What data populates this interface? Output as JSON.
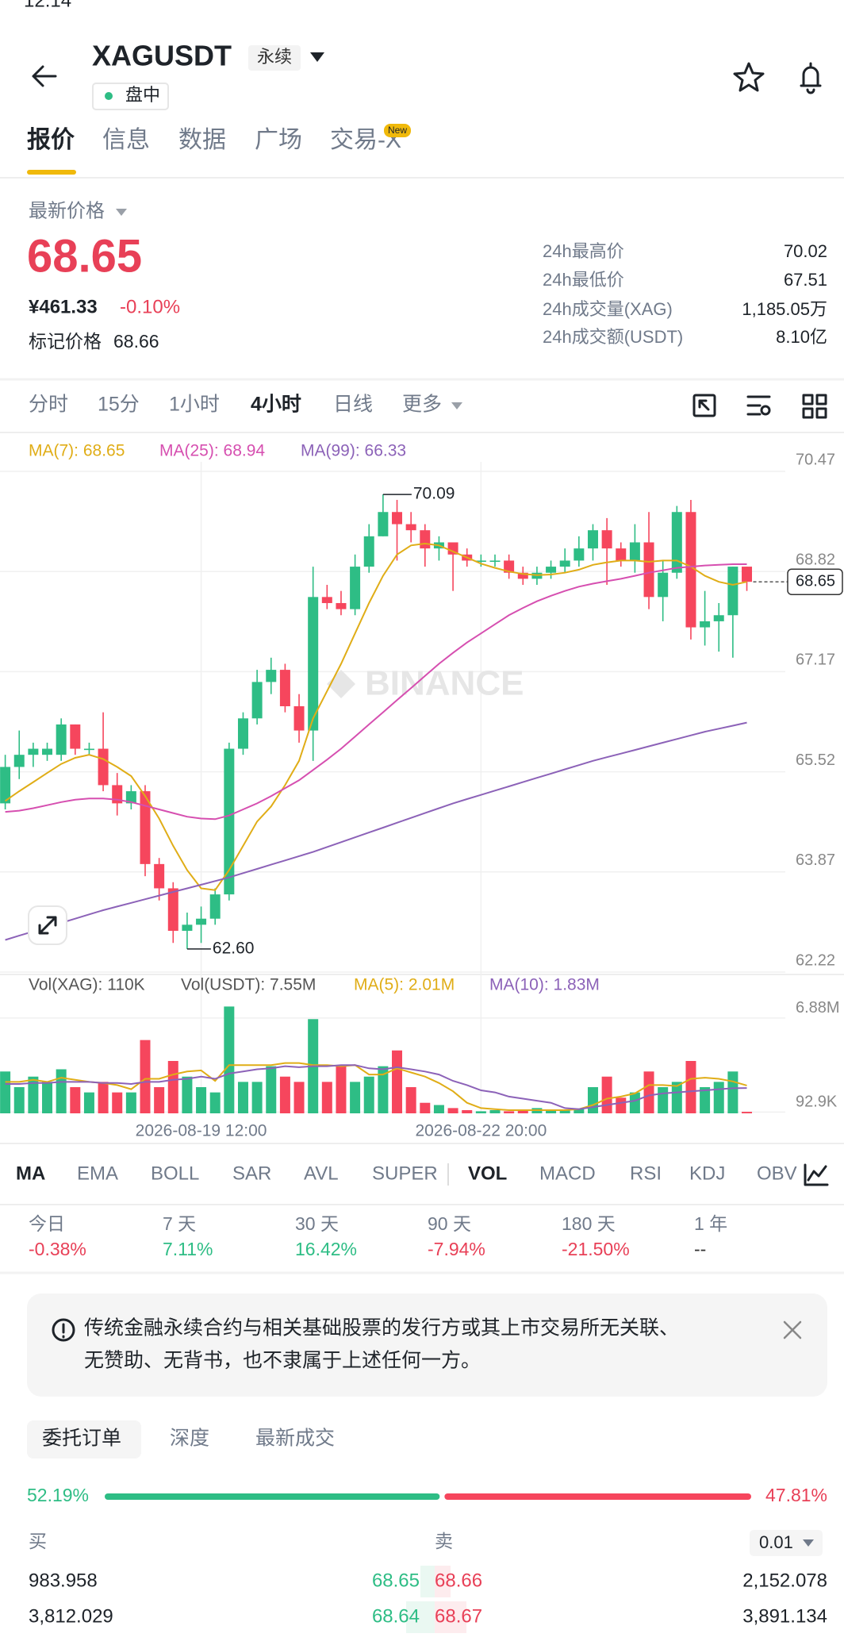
{
  "status_bar": {
    "time": "12:14"
  },
  "header": {
    "symbol": "XAGUSDT",
    "contract": "永续",
    "session": "盘中"
  },
  "tabs": {
    "items": [
      "报价",
      "信息",
      "数据",
      "广场",
      "交易-X"
    ],
    "active": 0,
    "badge": "New"
  },
  "price": {
    "label": "最新价格",
    "last": "68.65",
    "cny": "¥461.33",
    "change": "-0.10%",
    "mark_label": "标记价格",
    "mark": "68.66"
  },
  "stats": [
    {
      "label": "24h最高价",
      "value": "70.02"
    },
    {
      "label": "24h最低价",
      "value": "67.51"
    },
    {
      "label": "24h成交量(XAG)",
      "value": "1,185.05万"
    },
    {
      "label": "24h成交额(USDT)",
      "value": "8.10亿"
    }
  ],
  "intervals": {
    "items": [
      "分时",
      "15分",
      "1小时",
      "4小时",
      "日线",
      "更多"
    ],
    "active": 3
  },
  "chart_data": {
    "type": "candlestick",
    "categories": [
      null,
      null,
      null,
      null,
      null,
      null,
      null,
      null,
      null,
      null,
      null,
      null,
      null,
      null,
      "2026-08-19 12:00",
      null,
      null,
      null,
      null,
      null,
      null,
      null,
      null,
      null,
      null,
      null,
      null,
      null,
      null,
      null,
      null,
      null,
      null,
      null,
      "2026-08-22 20:00",
      null,
      null,
      null,
      null,
      null,
      null,
      null,
      null,
      null,
      null,
      null,
      null,
      null,
      null,
      null,
      null,
      null,
      null,
      null
    ],
    "open": [
      65.0,
      65.6,
      65.8,
      65.8,
      65.8,
      66.3,
      65.9,
      65.9,
      65.3,
      65.0,
      65.2,
      64.0,
      63.6,
      62.9,
      63.0,
      63.1,
      63.5,
      65.9,
      66.4,
      67.0,
      67.2,
      66.6,
      66.2,
      68.4,
      68.3,
      68.2,
      68.9,
      69.4,
      69.8,
      69.6,
      69.5,
      69.2,
      69.3,
      69.1,
      69.0,
      69.0,
      69.0,
      68.8,
      68.7,
      68.8,
      68.9,
      69.0,
      69.2,
      69.5,
      69.2,
      69.0,
      69.3,
      68.4,
      68.8,
      69.8,
      67.9,
      68.0,
      68.1,
      68.9
    ],
    "high": [
      65.8,
      66.2,
      66.0,
      66.0,
      66.4,
      66.3,
      66.0,
      66.5,
      65.5,
      65.3,
      65.3,
      64.1,
      63.7,
      63.2,
      63.3,
      63.6,
      66.0,
      66.5,
      67.2,
      67.4,
      67.3,
      66.8,
      68.9,
      68.6,
      68.5,
      69.1,
      69.6,
      70.09,
      70.0,
      69.8,
      69.6,
      69.4,
      69.3,
      69.2,
      69.1,
      69.1,
      69.1,
      68.9,
      68.9,
      69.0,
      69.2,
      69.4,
      69.6,
      69.7,
      69.3,
      69.6,
      69.8,
      69.0,
      69.9,
      70.0,
      68.5,
      68.3,
      68.9,
      68.9
    ],
    "low": [
      64.9,
      65.4,
      65.6,
      65.7,
      65.7,
      65.8,
      65.8,
      65.2,
      64.8,
      64.9,
      63.8,
      63.4,
      62.7,
      62.6,
      62.7,
      63.0,
      63.4,
      65.8,
      66.3,
      66.8,
      66.5,
      66.0,
      65.7,
      68.2,
      68.1,
      68.1,
      68.8,
      69.4,
      69.0,
      69.3,
      68.9,
      69.0,
      68.5,
      68.9,
      68.9,
      68.9,
      68.7,
      68.6,
      68.6,
      68.7,
      68.8,
      68.9,
      69.0,
      68.6,
      68.9,
      68.8,
      68.2,
      68.0,
      68.7,
      67.7,
      67.6,
      67.5,
      67.4,
      68.5
    ],
    "close": [
      65.6,
      65.8,
      65.9,
      65.9,
      66.3,
      65.9,
      65.9,
      65.3,
      65.0,
      65.2,
      64.0,
      63.6,
      62.9,
      63.0,
      63.1,
      63.5,
      65.9,
      66.4,
      67.0,
      67.2,
      66.6,
      66.2,
      68.4,
      68.3,
      68.2,
      68.9,
      69.4,
      69.8,
      69.6,
      69.5,
      69.2,
      69.3,
      69.1,
      69.0,
      69.0,
      69.0,
      68.8,
      68.7,
      68.8,
      68.9,
      69.0,
      69.2,
      69.5,
      69.2,
      69.0,
      69.3,
      68.4,
      68.8,
      69.8,
      67.9,
      68.0,
      68.1,
      68.9,
      68.65
    ],
    "up_color": "#2ebd85",
    "down_color": "#f6465d",
    "ylim": [
      62.22,
      70.47
    ],
    "yticks": [
      62.22,
      63.87,
      65.52,
      67.17,
      68.82,
      70.47
    ],
    "grid": true,
    "last_price": 68.65,
    "max_label": "70.09",
    "min_label": "62.60",
    "watermark": "BINANCE",
    "lines": [
      {
        "name": "MA(7): 68.65",
        "color": "#e0ad17",
        "values": [
          65.04,
          65.2,
          65.35,
          65.5,
          65.65,
          65.75,
          65.8,
          65.73,
          65.6,
          65.45,
          65.12,
          64.75,
          64.3,
          63.9,
          63.6,
          63.57,
          63.9,
          64.3,
          64.7,
          64.95,
          65.3,
          65.7,
          66.4,
          66.85,
          67.3,
          67.8,
          68.3,
          68.75,
          69.1,
          69.25,
          69.28,
          69.25,
          69.15,
          69.05,
          68.95,
          68.88,
          68.82,
          68.78,
          68.76,
          68.77,
          68.8,
          68.85,
          68.93,
          68.97,
          69.0,
          69.0,
          68.98,
          69.0,
          69.0,
          68.9,
          68.75,
          68.65,
          68.6,
          68.65
        ]
      },
      {
        "name": "MA(25): 68.94",
        "color": "#d64fb0",
        "values": [
          64.86,
          64.88,
          64.92,
          64.97,
          65.02,
          65.06,
          65.08,
          65.08,
          65.06,
          65.02,
          64.96,
          64.9,
          64.84,
          64.78,
          64.75,
          64.74,
          64.8,
          64.9,
          65.0,
          65.12,
          65.25,
          65.38,
          65.55,
          65.72,
          65.9,
          66.1,
          66.3,
          66.5,
          66.7,
          66.9,
          67.1,
          67.3,
          67.48,
          67.65,
          67.8,
          67.95,
          68.1,
          68.22,
          68.33,
          68.42,
          68.5,
          68.57,
          68.62,
          68.66,
          68.7,
          68.75,
          68.8,
          68.84,
          68.88,
          68.9,
          68.92,
          68.93,
          68.94,
          68.94
        ]
      },
      {
        "name": "MA(99): 66.33",
        "color": "#8c62b8",
        "values": [
          62.75,
          62.82,
          62.89,
          62.96,
          63.03,
          63.1,
          63.17,
          63.24,
          63.3,
          63.36,
          63.42,
          63.48,
          63.54,
          63.6,
          63.66,
          63.72,
          63.78,
          63.85,
          63.92,
          63.99,
          64.06,
          64.13,
          64.2,
          64.28,
          64.36,
          64.44,
          64.52,
          64.6,
          64.68,
          64.76,
          64.84,
          64.92,
          65.0,
          65.07,
          65.14,
          65.21,
          65.28,
          65.35,
          65.42,
          65.49,
          65.56,
          65.63,
          65.7,
          65.76,
          65.82,
          65.88,
          65.94,
          66.0,
          66.06,
          66.12,
          66.18,
          66.23,
          66.28,
          66.33
        ]
      }
    ],
    "volume": {
      "legend": [
        {
          "name": "Vol(XAG): 110K"
        },
        {
          "name": "Vol(USDT): 7.55M"
        }
      ],
      "ylim": [
        0,
        9680000
      ],
      "yticks": [
        {
          "value": 92900,
          "label": "92.9K"
        },
        {
          "value": 6880000,
          "label": "6.88M"
        }
      ],
      "values": [
        3020000,
        1890000,
        2650000,
        2270000,
        3180000,
        1890000,
        1510000,
        2270000,
        1510000,
        1510000,
        5290000,
        1890000,
        3780000,
        2650000,
        1890000,
        1510000,
        7710000,
        2270000,
        2270000,
        3400000,
        2650000,
        2270000,
        6800000,
        2270000,
        3400000,
        2270000,
        2650000,
        3400000,
        4540000,
        1890000,
        760000,
        600000,
        380000,
        230000,
        150000,
        230000,
        150000,
        230000,
        380000,
        230000,
        230000,
        300000,
        1890000,
        2650000,
        1130000,
        1510000,
        3020000,
        1890000,
        2270000,
        3780000,
        1890000,
        2270000,
        3020000,
        110000
      ],
      "lines": [
        {
          "name": "MA(5): 2.01M",
          "color": "#e0ad17",
          "values": [
            2270000,
            2270000,
            2420000,
            2270000,
            2570000,
            2420000,
            2270000,
            2190000,
            2040000,
            1740000,
            2490000,
            2490000,
            2800000,
            3020000,
            3100000,
            2340000,
            3480000,
            3480000,
            3480000,
            3480000,
            3630000,
            3630000,
            3480000,
            3480000,
            3400000,
            3480000,
            2800000,
            2800000,
            3250000,
            2950000,
            2650000,
            2190000,
            1590000,
            760000,
            380000,
            300000,
            230000,
            230000,
            230000,
            230000,
            230000,
            300000,
            600000,
            1060000,
            1210000,
            1440000,
            2040000,
            2040000,
            1970000,
            2490000,
            2570000,
            2490000,
            2300000,
            2010000
          ]
        },
        {
          "name": "MA(10): 1.83M",
          "color": "#8c62b8",
          "values": [
            2120000,
            2120000,
            2190000,
            2190000,
            2270000,
            2270000,
            2270000,
            2190000,
            2190000,
            2120000,
            2270000,
            2270000,
            2420000,
            2490000,
            2650000,
            2490000,
            2870000,
            3020000,
            3180000,
            3250000,
            3400000,
            3330000,
            3400000,
            3400000,
            3480000,
            3480000,
            3250000,
            3180000,
            3330000,
            3180000,
            3020000,
            2800000,
            2340000,
            2040000,
            1660000,
            1510000,
            1210000,
            1060000,
            910000,
            760000,
            380000,
            300000,
            450000,
            600000,
            760000,
            910000,
            1290000,
            1440000,
            1510000,
            1590000,
            1660000,
            1740000,
            1810000,
            1830000
          ]
        }
      ]
    }
  },
  "indicators": {
    "items": [
      "MA",
      "EMA",
      "BOLL",
      "SAR",
      "AVL",
      "SUPER",
      "VOL",
      "MACD",
      "RSI",
      "KDJ",
      "OBV"
    ],
    "active": [
      0,
      6
    ]
  },
  "returns": [
    {
      "period": "今日",
      "value": "-0.38%",
      "color": "#e84057"
    },
    {
      "period": "7 天",
      "value": "7.11%",
      "color": "#2ebd85"
    },
    {
      "period": "30 天",
      "value": "16.42%",
      "color": "#2ebd85"
    },
    {
      "period": "90 天",
      "value": "-7.94%",
      "color": "#e84057"
    },
    {
      "period": "180 天",
      "value": "-21.50%",
      "color": "#e84057"
    },
    {
      "period": "1 年",
      "value": "--",
      "color": "#333333"
    }
  ],
  "notice": {
    "lines": [
      "传统金融永续合约与相关基础股票的发行方或其上市交易所无关联、",
      "无赞助、无背书，也不隶属于上述任何一方。"
    ]
  },
  "order_book": {
    "tabs": [
      "委托订单",
      "深度",
      "最新成交"
    ],
    "active": 0,
    "buy_ratio": {
      "value": 52.19,
      "label": "52.19%"
    },
    "sell_ratio": {
      "value": 47.81,
      "label": "47.81%"
    },
    "buy_label": "买",
    "sell_label": "卖",
    "precision": "0.01",
    "bids": [
      {
        "qty": "983.958",
        "price": "68.65"
      },
      {
        "qty": "3,812.029",
        "price": "68.64"
      }
    ],
    "asks": [
      {
        "price": "68.66",
        "qty": "2,152.078"
      },
      {
        "price": "68.67",
        "qty": "3,891.134"
      }
    ]
  }
}
